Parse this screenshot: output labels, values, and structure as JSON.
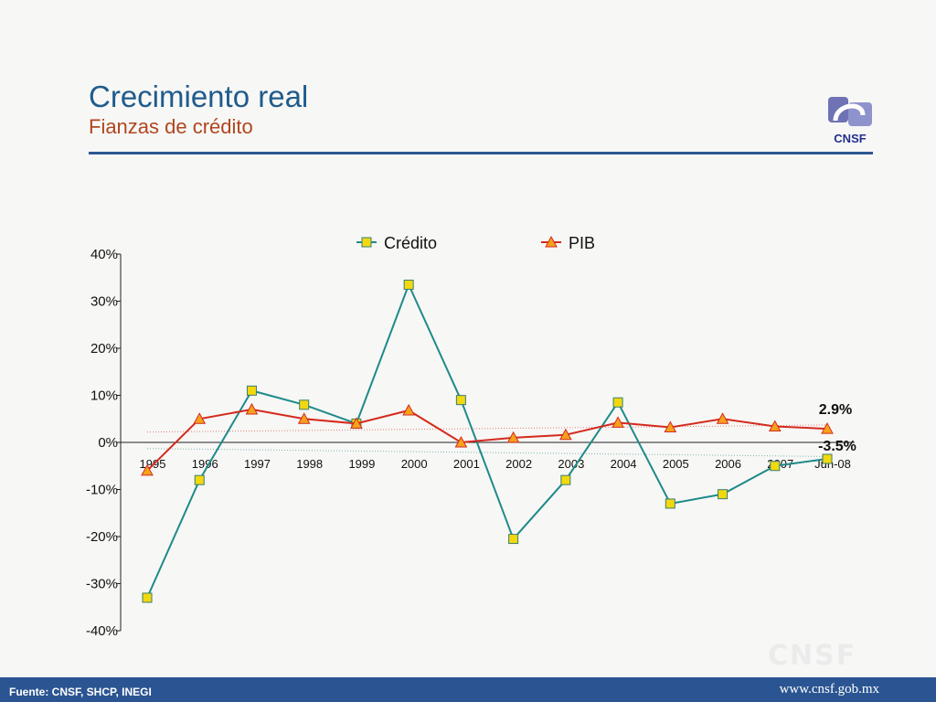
{
  "slide": {
    "title": "Crecimiento real",
    "subtitle": "Fianzas de crédito",
    "logo_text": "CNSF",
    "watermark": "CNSF",
    "source": "Fuente: CNSF, SHCP, INEGI",
    "url": "www.cnsf.gob.mx"
  },
  "colors": {
    "title": "#1f5b8c",
    "subtitle": "#b0461e",
    "rule": "#2d5893",
    "credito_line": "#1f8a8a",
    "credito_marker": "#f2d80f",
    "pib_line": "#d42a1e",
    "pib_marker": "#f6a21a",
    "footer": "#2b5592"
  },
  "chart_data": {
    "type": "line",
    "categories": [
      "1995",
      "1996",
      "1997",
      "1998",
      "1999",
      "2000",
      "2001",
      "2002",
      "2003",
      "2004",
      "2005",
      "2006",
      "2007",
      "Jun-08"
    ],
    "ylim": [
      -40,
      40
    ],
    "yticks": [
      40,
      30,
      20,
      10,
      0,
      -10,
      -20,
      -30,
      -40
    ],
    "ytick_labels": [
      "40%",
      "30%",
      "20%",
      "10%",
      "0%",
      "-10%",
      "-20%",
      "-30%",
      "-40%"
    ],
    "legend_position": "top",
    "series": [
      {
        "name": "Crédito",
        "values": [
          -33,
          -8,
          11,
          8,
          4,
          33.5,
          9,
          -20.5,
          -8,
          8.5,
          -13,
          -11,
          -5,
          -3.5
        ],
        "end_label": "-3.5%",
        "trendline": [
          -1.3,
          -3
        ]
      },
      {
        "name": "PIB",
        "values": [
          -6,
          5,
          7,
          5,
          4,
          6.8,
          0,
          1,
          1.6,
          4.2,
          3.2,
          5,
          3.4,
          2.9
        ],
        "end_label": "2.9%",
        "trendline": [
          2.2,
          3.7
        ]
      }
    ]
  }
}
